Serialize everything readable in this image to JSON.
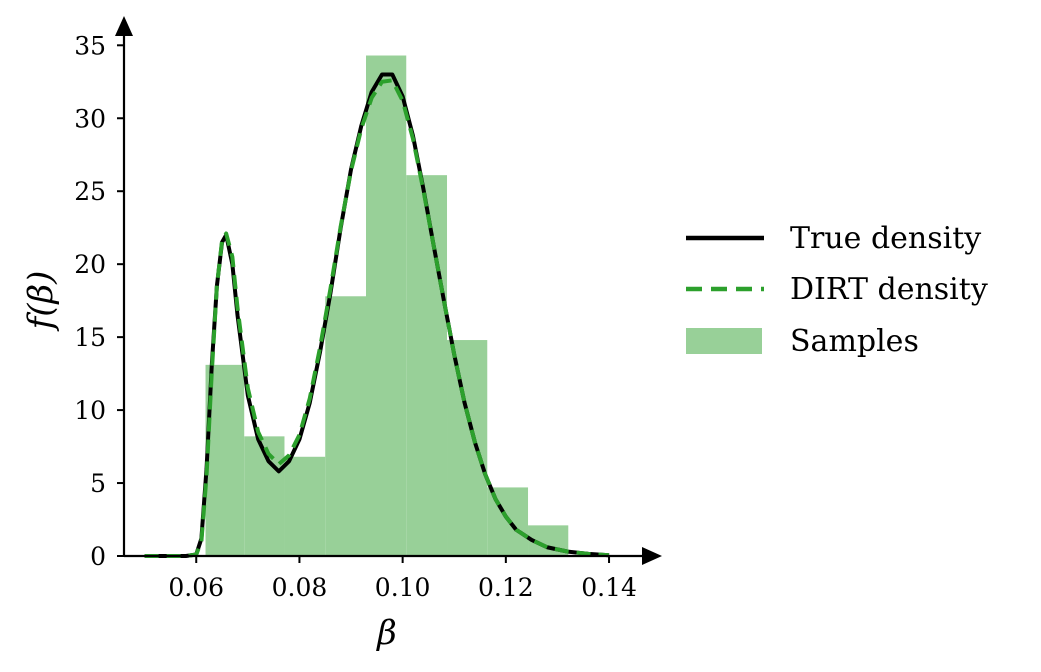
{
  "chart_data": {
    "type": "line",
    "xlabel": "β",
    "ylabel": "f(β)",
    "xlim": [
      0.046,
      0.146
    ],
    "ylim": [
      0,
      35.5
    ],
    "xticks": [
      {
        "value": 0.06,
        "label": "0.06"
      },
      {
        "value": 0.08,
        "label": "0.08"
      },
      {
        "value": 0.1,
        "label": "0.10"
      },
      {
        "value": 0.12,
        "label": "0.12"
      },
      {
        "value": 0.14,
        "label": "0.14"
      }
    ],
    "yticks": [
      {
        "value": 0,
        "label": "0"
      },
      {
        "value": 5,
        "label": "5"
      },
      {
        "value": 10,
        "label": "10"
      },
      {
        "value": 15,
        "label": "15"
      },
      {
        "value": 20,
        "label": "20"
      },
      {
        "value": 25,
        "label": "25"
      },
      {
        "value": 30,
        "label": "30"
      },
      {
        "value": 35,
        "label": "35"
      }
    ],
    "grid": false,
    "legend_position": "right",
    "legend": [
      {
        "name": "True density",
        "style": "solid-line",
        "color": "#000000"
      },
      {
        "name": "DIRT density",
        "style": "dashed-line",
        "color": "#2ca02c"
      },
      {
        "name": "Samples",
        "style": "patch",
        "color": "#98d098"
      }
    ],
    "histogram": {
      "name": "Samples",
      "color": "#98d098",
      "bins": [
        {
          "x0": 0.0618,
          "x1": 0.0693,
          "height": 13.1
        },
        {
          "x0": 0.0693,
          "x1": 0.0771,
          "height": 8.2
        },
        {
          "x0": 0.0771,
          "x1": 0.085,
          "height": 6.8
        },
        {
          "x0": 0.085,
          "x1": 0.0929,
          "height": 17.8
        },
        {
          "x0": 0.0929,
          "x1": 0.1007,
          "height": 34.3
        },
        {
          "x0": 0.1007,
          "x1": 0.1086,
          "height": 26.1
        },
        {
          "x0": 0.1086,
          "x1": 0.1164,
          "height": 14.8
        },
        {
          "x0": 0.1164,
          "x1": 0.1243,
          "height": 4.7
        },
        {
          "x0": 0.1243,
          "x1": 0.1321,
          "height": 2.1
        }
      ]
    },
    "series": [
      {
        "name": "True density",
        "color": "#000000",
        "style": "solid",
        "x": [
          0.05,
          0.055,
          0.058,
          0.06,
          0.061,
          0.062,
          0.063,
          0.064,
          0.065,
          0.0658,
          0.067,
          0.068,
          0.07,
          0.072,
          0.074,
          0.076,
          0.078,
          0.08,
          0.082,
          0.084,
          0.086,
          0.088,
          0.09,
          0.092,
          0.094,
          0.096,
          0.098,
          0.1,
          0.102,
          0.104,
          0.106,
          0.108,
          0.11,
          0.112,
          0.114,
          0.116,
          0.118,
          0.12,
          0.122,
          0.125,
          0.128,
          0.132,
          0.136,
          0.14
        ],
        "y": [
          0,
          0,
          0,
          0.1,
          1.2,
          6.0,
          13.0,
          18.5,
          21.5,
          22.0,
          20.0,
          16.5,
          11.0,
          8.0,
          6.5,
          5.8,
          6.5,
          8.0,
          10.5,
          14.0,
          18.0,
          22.5,
          26.5,
          29.5,
          31.8,
          33.0,
          33.0,
          31.5,
          28.8,
          25.2,
          21.3,
          17.5,
          13.8,
          10.5,
          7.8,
          5.6,
          3.9,
          2.7,
          1.8,
          1.1,
          0.6,
          0.3,
          0.15,
          0.05
        ]
      },
      {
        "name": "DIRT density",
        "color": "#2ca02c",
        "style": "dashed",
        "x": [
          0.05,
          0.055,
          0.058,
          0.06,
          0.061,
          0.062,
          0.063,
          0.064,
          0.065,
          0.0658,
          0.067,
          0.068,
          0.07,
          0.072,
          0.074,
          0.076,
          0.078,
          0.08,
          0.082,
          0.084,
          0.086,
          0.088,
          0.09,
          0.092,
          0.094,
          0.096,
          0.098,
          0.1,
          0.102,
          0.104,
          0.106,
          0.108,
          0.11,
          0.112,
          0.114,
          0.116,
          0.118,
          0.12,
          0.122,
          0.125,
          0.128,
          0.132,
          0.136,
          0.14
        ],
        "y": [
          0,
          0,
          0,
          0.1,
          1.0,
          5.5,
          12.5,
          18.5,
          21.6,
          22.1,
          20.5,
          17.0,
          11.5,
          8.5,
          7.0,
          6.3,
          6.9,
          8.3,
          10.8,
          14.3,
          18.3,
          22.6,
          26.4,
          29.3,
          31.4,
          32.5,
          32.6,
          31.2,
          28.6,
          25.1,
          21.3,
          17.5,
          13.8,
          10.5,
          7.8,
          5.6,
          3.9,
          2.7,
          1.8,
          1.1,
          0.6,
          0.3,
          0.15,
          0.05
        ]
      }
    ]
  }
}
